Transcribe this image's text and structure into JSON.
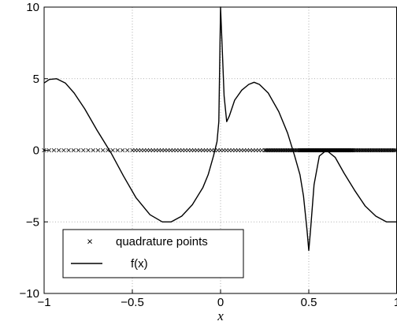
{
  "chart_data": {
    "type": "line",
    "title": "",
    "xlabel": "x",
    "ylabel": "",
    "xlim": [
      -1,
      1
    ],
    "ylim": [
      -10,
      10
    ],
    "grid": true,
    "legend_placement": "bottom-left",
    "x_ticks": [
      -1,
      -0.5,
      0,
      0.5,
      1
    ],
    "x_tick_labels": [
      "−1",
      "−0.5",
      "0",
      "0.5",
      "1"
    ],
    "y_ticks": [
      -10,
      -5,
      0,
      5,
      10
    ],
    "y_tick_labels": [
      "−10",
      "−5",
      "0",
      "5",
      "10"
    ],
    "series": [
      {
        "name": "quadrature points",
        "kind": "marker",
        "marker": "x",
        "y": 0,
        "segments": [
          {
            "x_start": -1.0,
            "x_end": -0.5,
            "count": 18
          },
          {
            "x_start": -0.5,
            "x_end": 0.25,
            "count": 45
          },
          {
            "x_start": 0.25,
            "x_end": 0.45,
            "count": 30
          },
          {
            "x_start": 0.45,
            "x_end": 0.75,
            "count": 90
          },
          {
            "x_start": 0.75,
            "x_end": 1.0,
            "count": 36
          }
        ]
      },
      {
        "name": "f(x)",
        "kind": "line",
        "points": [
          [
            -1.0,
            4.7
          ],
          [
            -0.97,
            4.95
          ],
          [
            -0.93,
            5.0
          ],
          [
            -0.88,
            4.7
          ],
          [
            -0.83,
            4.0
          ],
          [
            -0.77,
            2.9
          ],
          [
            -0.7,
            1.4
          ],
          [
            -0.62,
            -0.2
          ],
          [
            -0.55,
            -1.8
          ],
          [
            -0.48,
            -3.3
          ],
          [
            -0.4,
            -4.5
          ],
          [
            -0.33,
            -5.0
          ],
          [
            -0.28,
            -5.0
          ],
          [
            -0.22,
            -4.6
          ],
          [
            -0.16,
            -3.8
          ],
          [
            -0.1,
            -2.6
          ],
          [
            -0.07,
            -1.7
          ],
          [
            -0.04,
            -0.4
          ],
          [
            -0.02,
            0.6
          ],
          [
            -0.01,
            2.0
          ],
          [
            0.0,
            10.0
          ],
          [
            0.01,
            7.0
          ],
          [
            0.02,
            3.8
          ],
          [
            0.035,
            2.0
          ],
          [
            0.05,
            2.4
          ],
          [
            0.08,
            3.5
          ],
          [
            0.12,
            4.2
          ],
          [
            0.16,
            4.6
          ],
          [
            0.19,
            4.75
          ],
          [
            0.22,
            4.6
          ],
          [
            0.27,
            4.0
          ],
          [
            0.33,
            2.7
          ],
          [
            0.38,
            1.2
          ],
          [
            0.42,
            -0.4
          ],
          [
            0.45,
            -1.7
          ],
          [
            0.47,
            -3.2
          ],
          [
            0.49,
            -5.6
          ],
          [
            0.5,
            -7.0
          ],
          [
            0.51,
            -5.6
          ],
          [
            0.53,
            -2.4
          ],
          [
            0.56,
            -0.4
          ],
          [
            0.6,
            0.0
          ],
          [
            0.65,
            -0.5
          ],
          [
            0.7,
            -1.6
          ],
          [
            0.76,
            -2.8
          ],
          [
            0.82,
            -3.9
          ],
          [
            0.88,
            -4.6
          ],
          [
            0.94,
            -5.0
          ],
          [
            1.0,
            -5.0
          ]
        ]
      }
    ]
  }
}
